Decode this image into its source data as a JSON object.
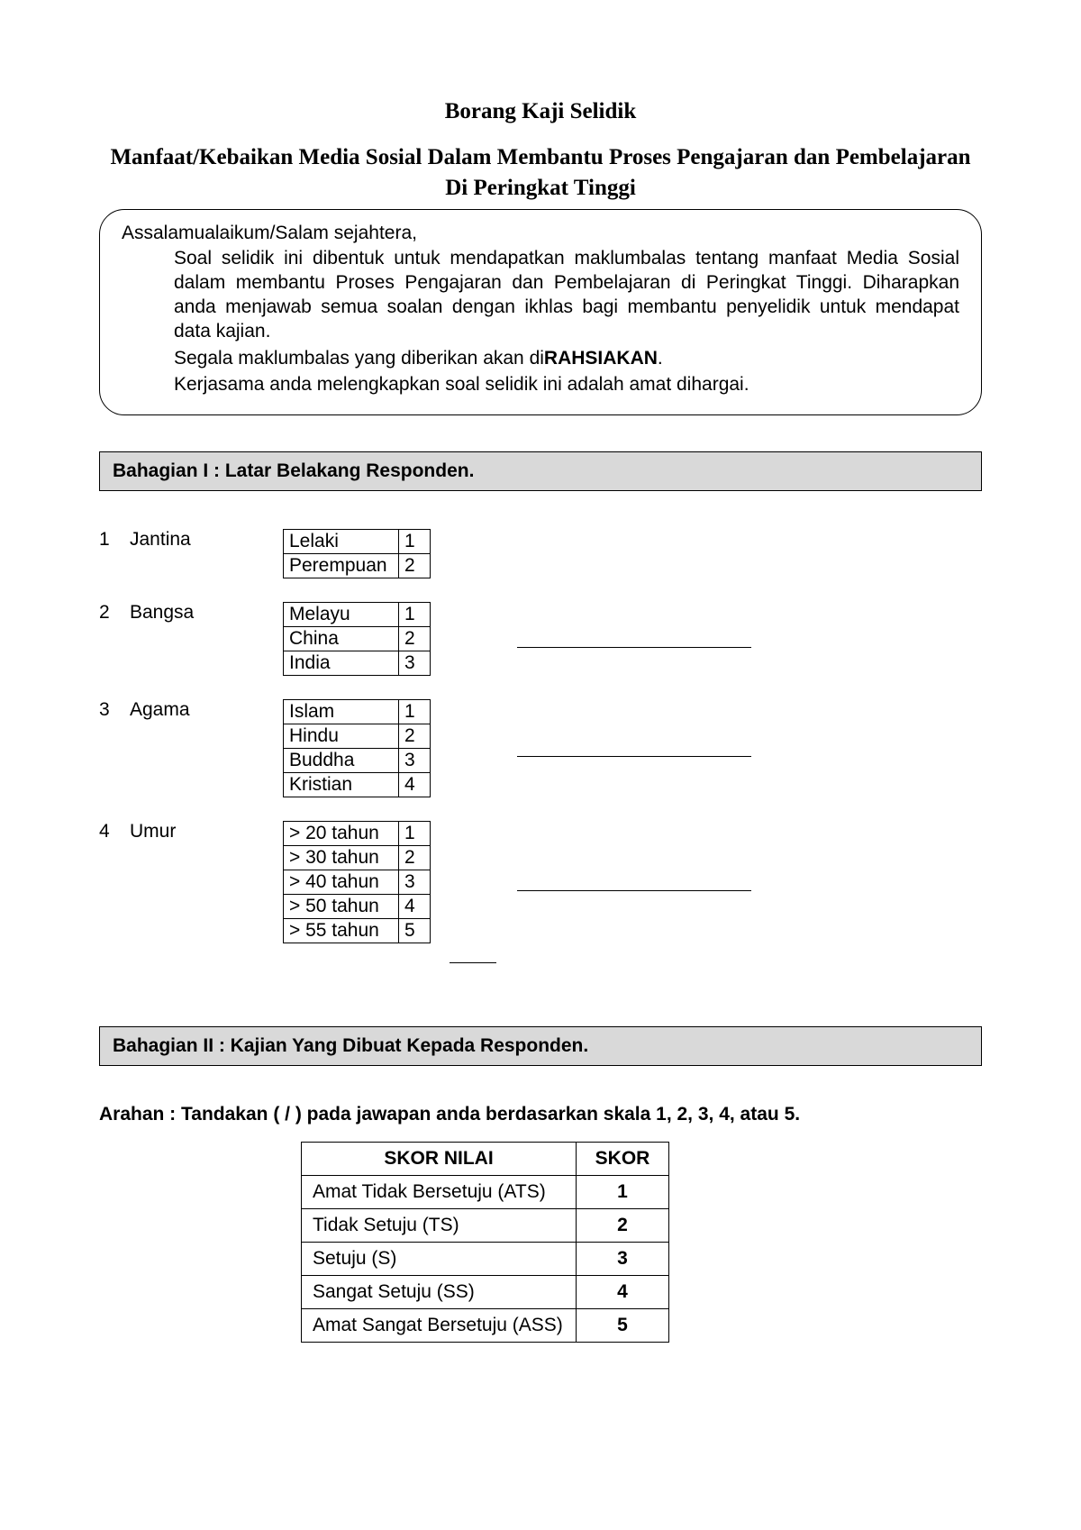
{
  "title": "Borang Kaji Selidik",
  "subtitle": "Manfaat/Kebaikan Media Sosial Dalam Membantu Proses Pengajaran dan Pembelajaran Di Peringkat Tinggi",
  "intro": {
    "greeting": "Assalamualaikum/Salam sejahtera,",
    "p1": "Soal selidik ini dibentuk untuk mendapatkan maklumbalas tentang manfaat Media Sosial dalam membantu Proses Pengajaran dan Pembelajaran di Peringkat Tinggi. Diharapkan anda menjawab semua soalan dengan ikhlas bagi membantu penyelidik untuk mendapat data kajian.",
    "p2_pre": "Segala maklumbalas yang diberikan akan di",
    "p2_bold": "RAHSIAKAN",
    "p2_post": ".",
    "p3": "Kerjasama anda melengkapkan soal selidik ini adalah amat dihargai."
  },
  "section1_header": "Bahagian I : Latar Belakang Responden.",
  "q1": {
    "num": "1",
    "label": "Jantina",
    "opts": [
      {
        "text": "Lelaki",
        "code": "1"
      },
      {
        "text": "Perempuan",
        "code": "2"
      }
    ]
  },
  "q2": {
    "num": "2",
    "label": "Bangsa",
    "opts": [
      {
        "text": "Melayu",
        "code": "1"
      },
      {
        "text": "China",
        "code": "2"
      },
      {
        "text": "India",
        "code": "3"
      }
    ]
  },
  "q3": {
    "num": "3",
    "label": "Agama",
    "opts": [
      {
        "text": "Islam",
        "code": "1"
      },
      {
        "text": "Hindu",
        "code": "2"
      },
      {
        "text": "Buddha",
        "code": "3"
      },
      {
        "text": "Kristian",
        "code": "4"
      }
    ]
  },
  "q4": {
    "num": "4",
    "label": "Umur",
    "opts": [
      {
        "text": "> 20 tahun",
        "code": "1"
      },
      {
        "text": "> 30 tahun",
        "code": "2"
      },
      {
        "text": ">  40 tahun",
        "code": "3"
      },
      {
        "text": ">  50 tahun",
        "code": "4"
      },
      {
        "text": ">  55 tahun",
        "code": "5"
      }
    ]
  },
  "section2_header": "Bahagian II : Kajian Yang Dibuat Kepada Responden.",
  "arahan": "Arahan : Tandakan ( / ) pada jawapan anda berdasarkan skala 1, 2, 3, 4, atau 5.",
  "skor": {
    "h1": "SKOR NILAI",
    "h2": "SKOR",
    "rows": [
      {
        "label": "Amat Tidak Bersetuju (ATS)",
        "val": "1"
      },
      {
        "label": "Tidak Setuju (TS)",
        "val": "2"
      },
      {
        "label": "Setuju (S)",
        "val": "3"
      },
      {
        "label": "Sangat Setuju (SS)",
        "val": "4"
      },
      {
        "label": "Amat Sangat Bersetuju (ASS)",
        "val": "5"
      }
    ]
  },
  "colors": {
    "section_bg": "#d9d9d9",
    "border": "#000000",
    "text": "#000000",
    "background": "#ffffff"
  }
}
